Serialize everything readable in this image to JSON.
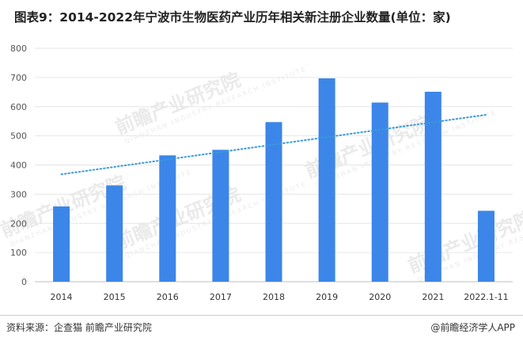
{
  "header": {
    "title": "图表9：2014-2022年宁波市生物医药产业历年相关新注册企业数量(单位：家)"
  },
  "footer": {
    "source": "资料来源：企查猫 前瞻产业研究院",
    "brand": "@前瞻经济学人APP"
  },
  "watermark": {
    "text": "前瞻产业研究院",
    "sub": "QIANZHAN INDUSTRY RESEARCH INSTITUTE"
  },
  "colors": {
    "bar": "#3b86e8",
    "trendline": "#3a9ad9",
    "grid": "#e6e6e6"
  },
  "chart_data": {
    "type": "bar",
    "categories": [
      "2014",
      "2015",
      "2016",
      "2017",
      "2018",
      "2019",
      "2020",
      "2021",
      "2022.1-11"
    ],
    "series": [
      {
        "values": [
          258,
          330,
          433,
          452,
          547,
          697,
          614,
          651,
          243
        ]
      }
    ],
    "trendline": {
      "style": "dotted",
      "start": 368,
      "end": 572
    },
    "ylim": [
      0,
      800
    ],
    "yticks": [
      "0",
      "100",
      "200",
      "300",
      "400",
      "500",
      "600",
      "700",
      "800"
    ],
    "grid": true,
    "legend": "none"
  }
}
